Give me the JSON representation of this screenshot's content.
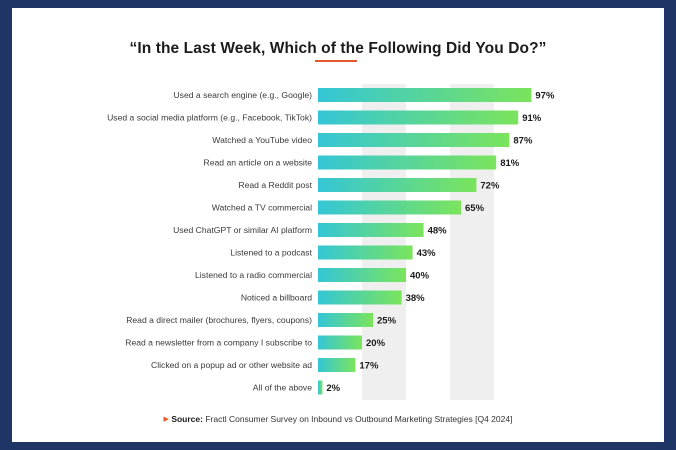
{
  "colors": {
    "background": "#1f3566",
    "card": "#ffffff",
    "bar_start": "#34c6d6",
    "bar_end": "#7be45c",
    "accent": "#e4572e",
    "gridband": "#efefef"
  },
  "chart_data": {
    "type": "bar",
    "orientation": "horizontal",
    "title": "“In the Last Week, Which of the Following Did You Do?”",
    "xlabel": "",
    "ylabel": "",
    "xlim": [
      0,
      100
    ],
    "categories": [
      "Used a search engine (e.g., Google)",
      "Used a social media platform (e.g., Facebook, TikTok)",
      "Watched a YouTube video",
      "Read an article on a website",
      "Read a Reddit post",
      "Watched a TV commercial",
      "Used ChatGPT or similar AI platform",
      "Listened to a podcast",
      "Listened to a radio commercial",
      "Noticed a billboard",
      "Read a direct mailer (brochures, flyers, coupons)",
      "Read a newsletter from a company I subscribe to",
      "Clicked on a popup ad or other website ad",
      "All of the above"
    ],
    "values": [
      97,
      91,
      87,
      81,
      72,
      65,
      48,
      43,
      40,
      38,
      25,
      20,
      17,
      2
    ],
    "value_labels": [
      "97%",
      "91%",
      "87%",
      "81%",
      "72%",
      "65%",
      "48%",
      "43%",
      "40%",
      "38%",
      "25%",
      "20%",
      "17%",
      "2%"
    ]
  },
  "source": {
    "label": "Source:",
    "text": "Fractl Consumer Survey on Inbound vs Outbound Marketing Strategies [Q4 2024]"
  }
}
